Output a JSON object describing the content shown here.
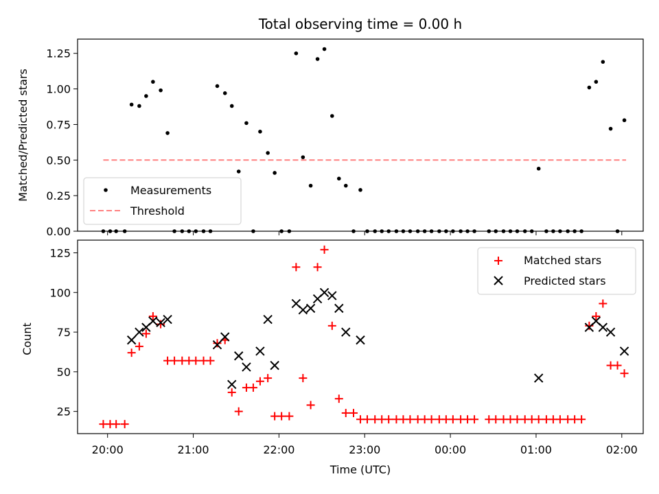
{
  "chart_data": [
    {
      "type": "scatter",
      "title": "Total observing time = 0.00 h",
      "xlabel": "",
      "ylabel": "Matched/Predicted stars",
      "ylim": [
        0,
        1.35
      ],
      "yticks": [
        0.0,
        0.25,
        0.5,
        0.75,
        1.0,
        1.25
      ],
      "ytick_labels": [
        "0.00",
        "0.25",
        "0.50",
        "0.75",
        "1.00",
        "1.25"
      ],
      "xlim": [
        -0.35,
        6.25
      ],
      "xticks": [
        0,
        1,
        2,
        3,
        4,
        5,
        6
      ],
      "legend_position": "bottom-left",
      "threshold": {
        "name": "Threshold",
        "value": 0.5,
        "x_range": [
          -0.05,
          6.05
        ],
        "color": "#ff7f7f"
      },
      "series": [
        {
          "name": "Measurements",
          "color": "#000000",
          "marker": "dot",
          "x": [
            -0.05,
            0.03,
            0.1,
            0.2,
            0.28,
            0.37,
            0.45,
            0.53,
            0.62,
            0.7,
            0.78,
            0.87,
            0.95,
            1.03,
            1.12,
            1.2,
            1.28,
            1.37,
            1.45,
            1.53,
            1.62,
            1.7,
            1.78,
            1.87,
            1.95,
            2.03,
            2.12,
            2.2,
            2.28,
            2.37,
            2.45,
            2.53,
            2.62,
            2.7,
            2.78,
            2.87,
            2.95,
            3.03,
            3.12,
            3.2,
            3.28,
            3.37,
            3.45,
            3.53,
            3.62,
            3.7,
            3.78,
            3.87,
            3.95,
            4.03,
            4.12,
            4.2,
            4.28,
            4.45,
            4.53,
            4.62,
            4.7,
            4.78,
            4.87,
            4.95,
            5.03,
            5.12,
            5.2,
            5.28,
            5.37,
            5.45,
            5.53,
            5.62,
            5.7,
            5.78,
            5.87,
            5.95,
            6.03
          ],
          "y": [
            0.0,
            0.0,
            0.0,
            0.0,
            0.89,
            0.88,
            0.95,
            1.05,
            0.99,
            0.69,
            0.0,
            0.0,
            0.0,
            0.0,
            0.0,
            0.0,
            1.02,
            0.97,
            0.88,
            0.42,
            0.76,
            0.0,
            0.7,
            0.55,
            0.41,
            0.0,
            0.0,
            1.25,
            0.52,
            0.32,
            1.21,
            1.28,
            0.81,
            0.37,
            0.32,
            0.0,
            0.29,
            0.0,
            0.0,
            0.0,
            0.0,
            0.0,
            0.0,
            0.0,
            0.0,
            0.0,
            0.0,
            0.0,
            0.0,
            0.0,
            0.0,
            0.0,
            0.0,
            0.0,
            0.0,
            0.0,
            0.0,
            0.0,
            0.0,
            0.0,
            0.44,
            0.0,
            0.0,
            0.0,
            0.0,
            0.0,
            0.0,
            1.01,
            1.05,
            1.19,
            0.72,
            0.0,
            0.78
          ]
        }
      ]
    },
    {
      "type": "scatter",
      "title": "",
      "xlabel": "Time (UTC)",
      "ylabel": "Count",
      "ylim": [
        11,
        133
      ],
      "yticks": [
        25,
        50,
        75,
        100,
        125
      ],
      "ytick_labels": [
        "25",
        "50",
        "75",
        "100",
        "125"
      ],
      "xlim": [
        -0.35,
        6.25
      ],
      "xticks": [
        0,
        1,
        2,
        3,
        4,
        5,
        6
      ],
      "xtick_labels": [
        "20:00",
        "21:00",
        "22:00",
        "23:00",
        "00:00",
        "01:00",
        "02:00"
      ],
      "legend_position": "top-right",
      "series": [
        {
          "name": "Matched stars",
          "color": "#ff0000",
          "marker": "plus",
          "x": [
            -0.05,
            0.03,
            0.1,
            0.2,
            0.28,
            0.37,
            0.45,
            0.53,
            0.62,
            0.7,
            0.78,
            0.87,
            0.95,
            1.03,
            1.12,
            1.2,
            1.28,
            1.37,
            1.45,
            1.53,
            1.62,
            1.7,
            1.78,
            1.87,
            1.95,
            2.03,
            2.12,
            2.2,
            2.28,
            2.37,
            2.45,
            2.53,
            2.62,
            2.7,
            2.78,
            2.87,
            2.95,
            3.03,
            3.12,
            3.2,
            3.28,
            3.37,
            3.45,
            3.53,
            3.62,
            3.7,
            3.78,
            3.87,
            3.95,
            4.03,
            4.12,
            4.2,
            4.28,
            4.45,
            4.53,
            4.62,
            4.7,
            4.78,
            4.87,
            4.95,
            5.03,
            5.12,
            5.2,
            5.28,
            5.37,
            5.45,
            5.53,
            5.62,
            5.7,
            5.78,
            5.87,
            5.95,
            6.03
          ],
          "y": [
            17,
            17,
            17,
            17,
            62,
            66,
            74,
            85,
            80,
            57,
            57,
            57,
            57,
            57,
            57,
            57,
            68,
            70,
            37,
            25,
            40,
            40,
            44,
            46,
            22,
            22,
            22,
            116,
            46,
            29,
            116,
            127,
            79,
            33,
            24,
            24,
            20,
            20,
            20,
            20,
            20,
            20,
            20,
            20,
            20,
            20,
            20,
            20,
            20,
            20,
            20,
            20,
            20,
            20,
            20,
            20,
            20,
            20,
            20,
            20,
            20,
            20,
            20,
            20,
            20,
            20,
            20,
            79,
            85,
            93,
            54,
            54,
            49
          ]
        },
        {
          "name": "Predicted stars",
          "color": "#000000",
          "marker": "x",
          "x": [
            0.28,
            0.37,
            0.45,
            0.53,
            0.62,
            0.7,
            1.28,
            1.37,
            1.45,
            1.53,
            1.62,
            1.78,
            1.87,
            1.95,
            2.2,
            2.28,
            2.37,
            2.45,
            2.53,
            2.62,
            2.7,
            2.78,
            2.95,
            5.03,
            5.62,
            5.7,
            5.78,
            5.87,
            6.03
          ],
          "y": [
            70,
            75,
            78,
            82,
            81,
            83,
            67,
            72,
            42,
            60,
            53,
            63,
            83,
            54,
            93,
            89,
            90,
            96,
            100,
            98,
            90,
            75,
            70,
            46,
            78,
            82,
            78,
            75,
            63
          ]
        }
      ]
    }
  ]
}
